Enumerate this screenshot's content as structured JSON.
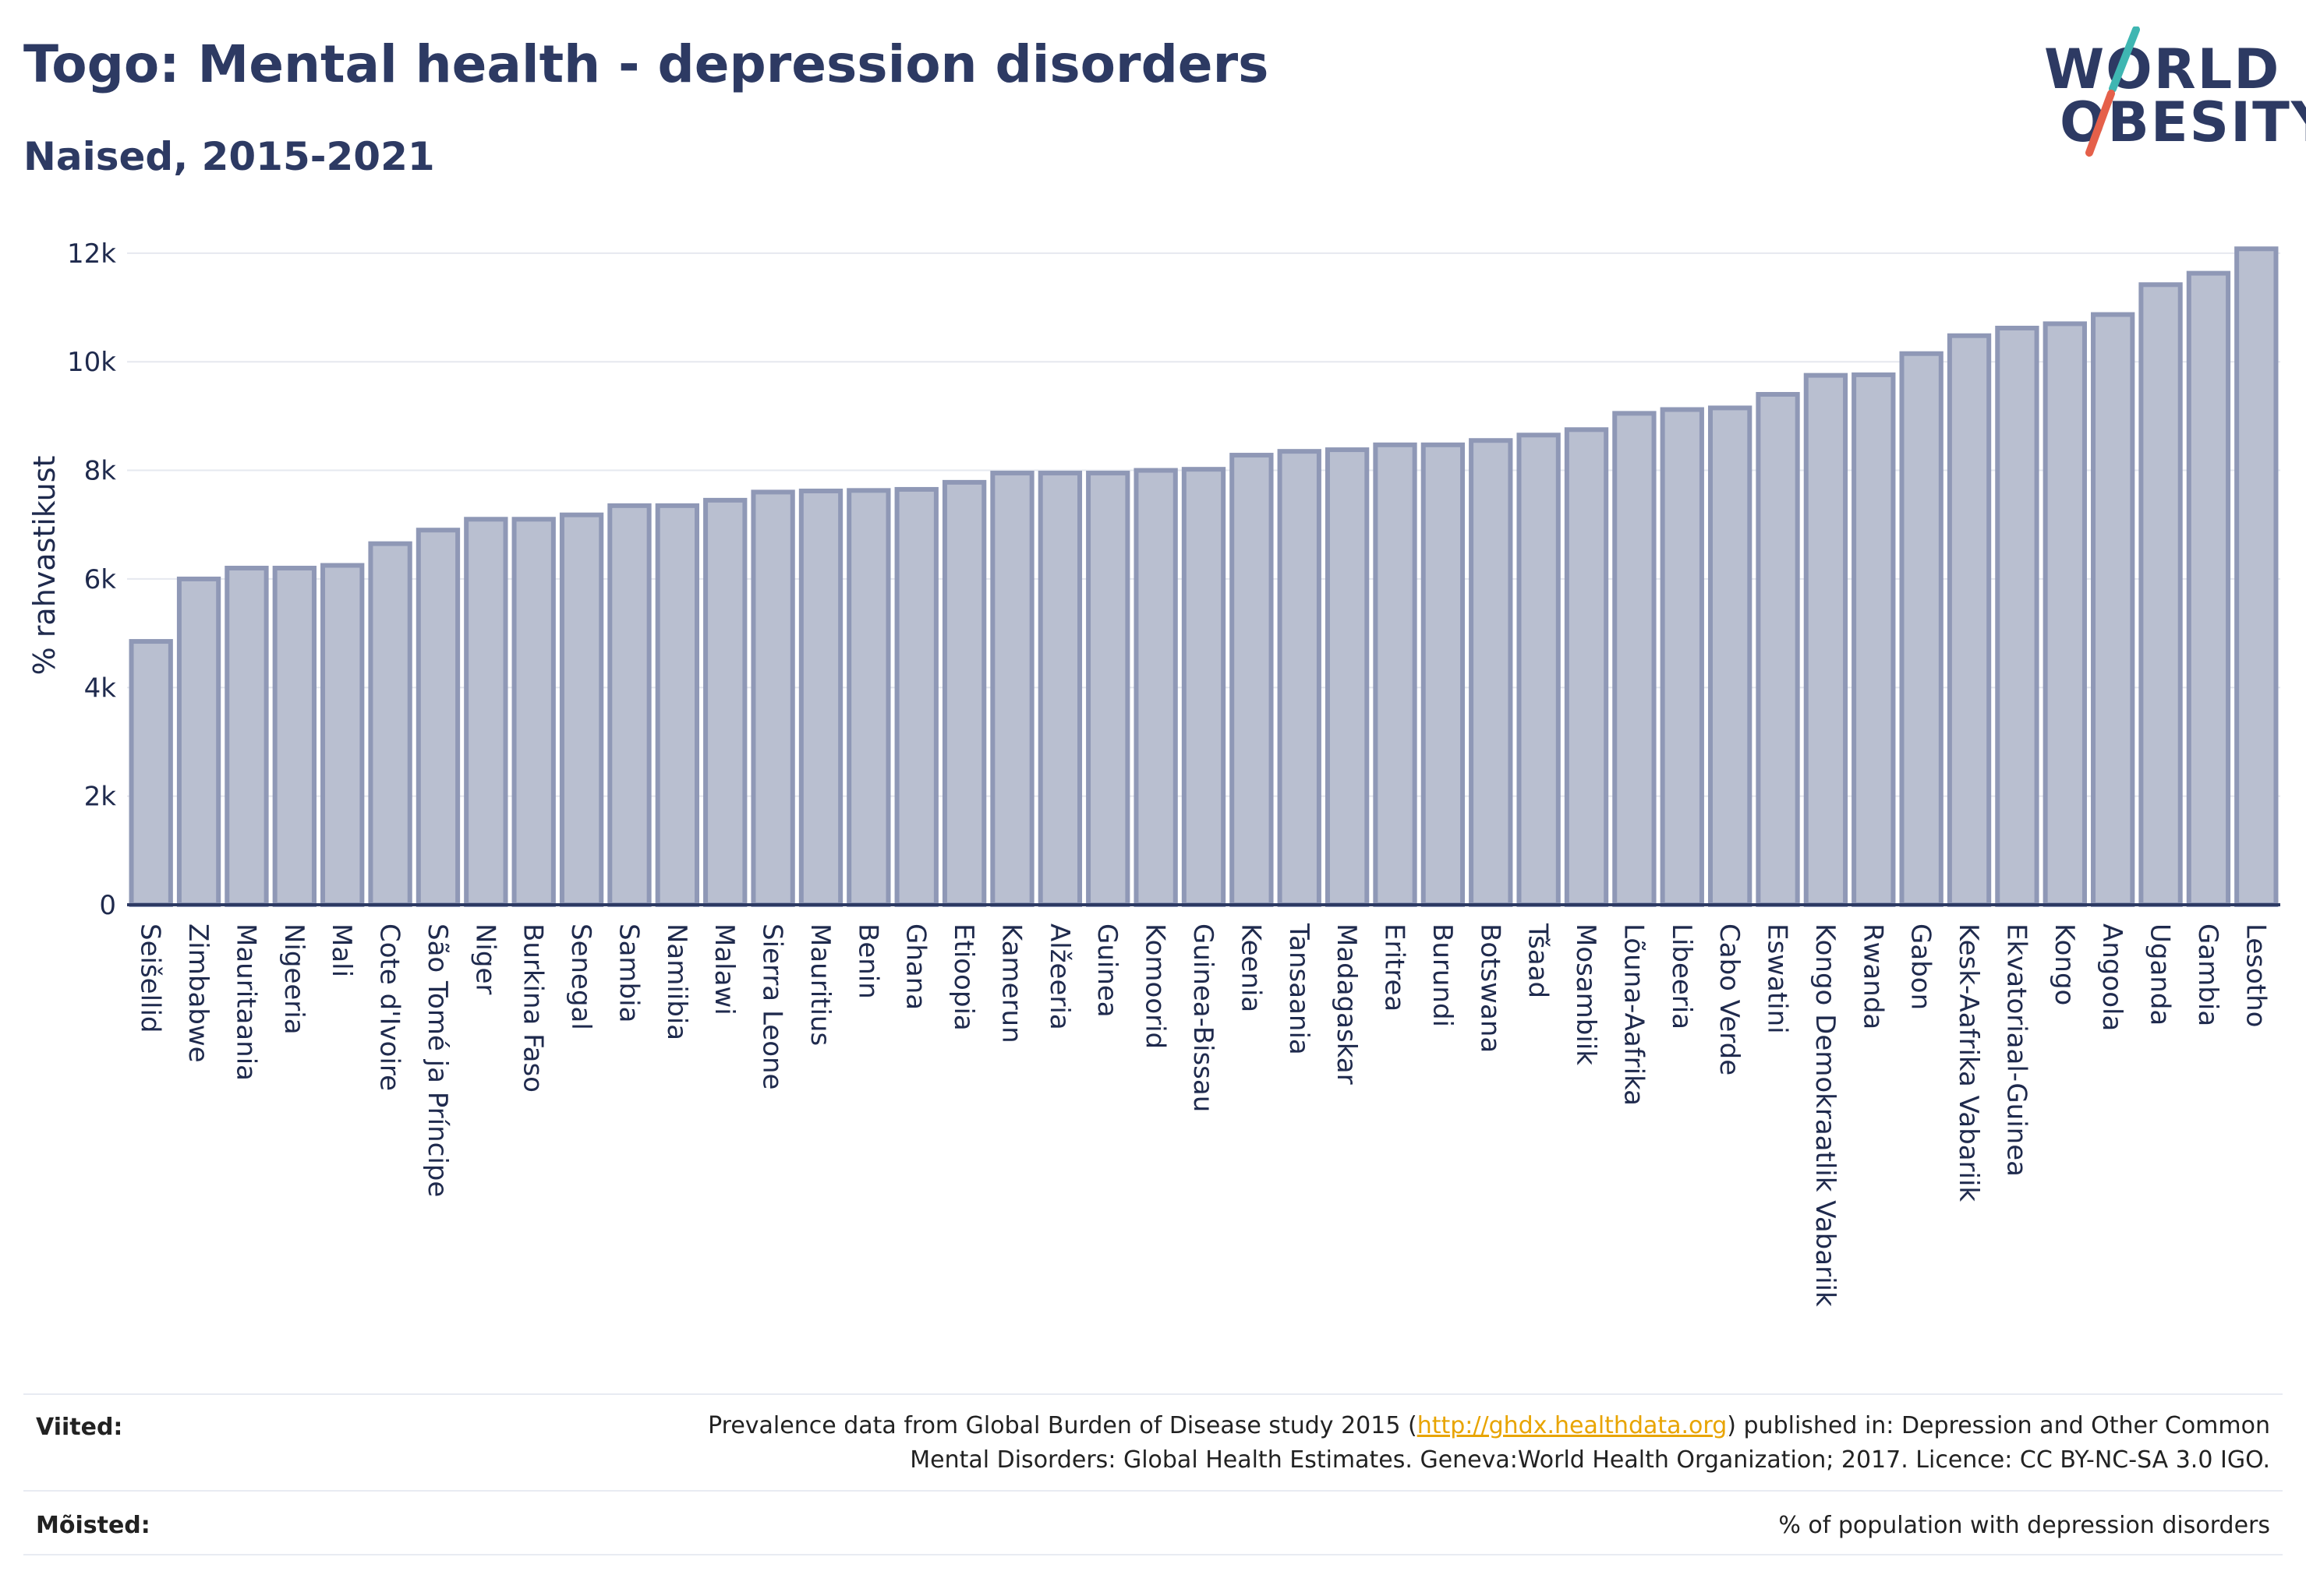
{
  "header": {
    "title": "Togo: Mental health - depression disorders",
    "subtitle": "Naised, 2015-2021"
  },
  "logo": {
    "line1": "WORLD",
    "line2": "OBESITY",
    "accent_teal": "#3fb6b2",
    "accent_red": "#e5604a"
  },
  "colors": {
    "bar_fill": "#b9bfd0",
    "bar_stroke": "#8f98b6",
    "axis": "#2d3a63",
    "grid": "#e6e8ef"
  },
  "chart_data": {
    "type": "bar",
    "ylabel": "% rahvastikust",
    "ylim": [
      0,
      12500
    ],
    "yticks": [
      0,
      2000,
      4000,
      6000,
      8000,
      10000,
      12000
    ],
    "ytick_labels": [
      "0",
      "2k",
      "4k",
      "6k",
      "8k",
      "10k",
      "12k"
    ],
    "grid": true,
    "categories": [
      "Seišellid",
      "Zimbabwe",
      "Mauritaania",
      "Nigeeria",
      "Mali",
      "Cote d'Ivoire",
      "São Tomé ja Príncipe",
      "Niger",
      "Burkina Faso",
      "Senegal",
      "Sambia",
      "Namiibia",
      "Malawi",
      "Sierra Leone",
      "Mauritius",
      "Benin",
      "Ghana",
      "Etioopia",
      "Kamerun",
      "Alžeeria",
      "Guinea",
      "Komoorid",
      "Guinea-Bissau",
      "Keenia",
      "Tansaania",
      "Madagaskar",
      "Eritrea",
      "Burundi",
      "Botswana",
      "Tšaad",
      "Mosambiik",
      "Lõuna-Aafrika",
      "Libeeria",
      "Cabo Verde",
      "Eswatini",
      "Kongo Demokraatlik Vabariik",
      "Rwanda",
      "Gabon",
      "Kesk-Aafrika Vabariik",
      "Ekvatoriaal-Guinea",
      "Kongo",
      "Angoola",
      "Uganda",
      "Gambia",
      "Lesotho"
    ],
    "values": [
      4850,
      6000,
      6200,
      6200,
      6250,
      6650,
      6900,
      7100,
      7100,
      7180,
      7350,
      7350,
      7450,
      7600,
      7620,
      7630,
      7650,
      7780,
      7950,
      7950,
      7950,
      8000,
      8020,
      8280,
      8350,
      8380,
      8470,
      8470,
      8550,
      8650,
      8750,
      9050,
      9120,
      9150,
      9400,
      9750,
      9760,
      10150,
      10480,
      10620,
      10700,
      10870,
      11420,
      11630,
      12080
    ]
  },
  "footer": {
    "sources_label": "Viited:",
    "sources_text_before": "Prevalence data from Global Burden of Disease study 2015 (",
    "sources_link": "http://ghdx.healthdata.org",
    "sources_text_after": ") published in: Depression and Other Common",
    "sources_line2": "Mental Disorders: Global Health Estimates. Geneva:World Health Organization; 2017. Licence: CC BY-NC-SA 3.0 IGO.",
    "definitions_label": "Mõisted:",
    "definitions_text": "% of population with depression disorders"
  }
}
